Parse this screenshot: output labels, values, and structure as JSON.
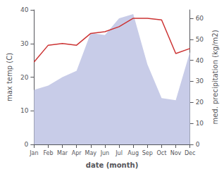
{
  "chart_data": {
    "type": "line",
    "xlabel": "date (month)",
    "ylabel": "max temp (C)",
    "y2label": "med. precipitation (kg/m2)",
    "categories": [
      "Jan",
      "Feb",
      "Mar",
      "Apr",
      "May",
      "Jun",
      "Jul",
      "Aug",
      "Sep",
      "Oct",
      "Nov",
      "Dec"
    ],
    "series": [
      {
        "type": "area",
        "axis": "y2",
        "color": "#c8cce8",
        "values": [
          26,
          28,
          32,
          35,
          53,
          52,
          60,
          62,
          38,
          22,
          21,
          44
        ]
      },
      {
        "type": "line",
        "axis": "y",
        "color": "#cc3333",
        "values": [
          24.5,
          29.5,
          30.0,
          29.5,
          33.0,
          33.5,
          35.0,
          37.5,
          37.5,
          37.0,
          27.0,
          28.5
        ]
      }
    ],
    "ylim": [
      0,
      40
    ],
    "yticks": [
      0,
      10,
      20,
      30,
      40
    ],
    "y2lim": [
      0,
      64
    ],
    "y2ticks": [
      0,
      10,
      20,
      30,
      40,
      50,
      60
    ],
    "grid": false
  }
}
